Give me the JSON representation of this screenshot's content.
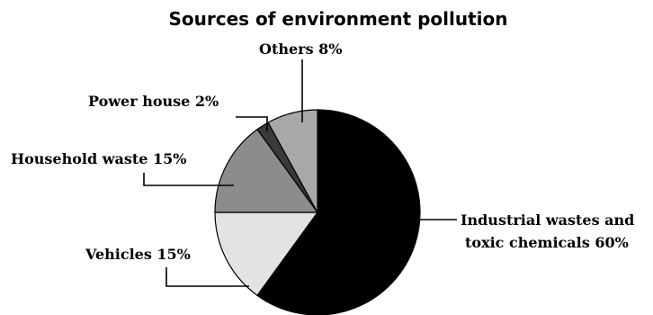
{
  "chart_data": {
    "type": "pie",
    "title": "Sources of environment pollution",
    "slices": [
      {
        "label": "Industrial wastes and toxic chemicals",
        "display": [
          "Industrial wastes and",
          "toxic chemicals 60%"
        ],
        "value": 60,
        "color": "#000000"
      },
      {
        "label": "Vehicles",
        "display": [
          "Vehicles 15%"
        ],
        "value": 15,
        "color": "#e3e3e3"
      },
      {
        "label": "Household waste",
        "display": [
          "Household waste 15%"
        ],
        "value": 15,
        "color": "#8c8c8c"
      },
      {
        "label": "Power house",
        "display": [
          "Power house 2%"
        ],
        "value": 2,
        "color": "#3a3a3a"
      },
      {
        "label": "Others",
        "display": [
          "Others 8%"
        ],
        "value": 8,
        "color": "#a8a8a8"
      }
    ]
  }
}
